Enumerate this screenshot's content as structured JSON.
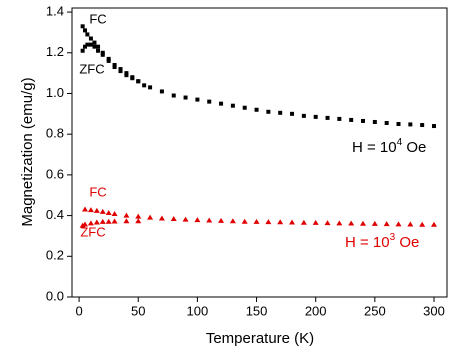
{
  "chart_data": {
    "type": "scatter",
    "xlabel": "Temperature (K)",
    "ylabel": "Magnetization (emu/g)",
    "xlim": [
      -6,
      311
    ],
    "ylim": [
      0,
      1.42
    ],
    "xticks": [
      0,
      50,
      100,
      150,
      200,
      250,
      300
    ],
    "yticks": [
      {
        "value": 0,
        "label": "0.0"
      },
      0.2,
      0.4,
      0.6,
      0.8,
      {
        "value": 1,
        "label": "1.0"
      },
      1.2,
      1.4
    ],
    "series": [
      {
        "name": "FC",
        "color": "#000000",
        "marker": "square",
        "x": [
          3,
          5,
          7,
          10,
          13,
          16,
          20,
          25,
          30,
          35,
          40,
          45,
          50,
          55,
          60,
          70,
          80,
          90,
          100,
          110,
          120,
          130,
          140,
          150,
          160,
          170,
          180,
          190,
          200,
          210,
          220,
          230,
          240,
          250,
          260,
          270,
          280,
          290,
          300
        ],
        "values": [
          1.33,
          1.31,
          1.29,
          1.27,
          1.25,
          1.23,
          1.2,
          1.17,
          1.14,
          1.12,
          1.1,
          1.08,
          1.06,
          1.04,
          1.03,
          1.01,
          0.99,
          0.98,
          0.97,
          0.96,
          0.95,
          0.94,
          0.93,
          0.92,
          0.91,
          0.905,
          0.9,
          0.89,
          0.885,
          0.88,
          0.875,
          0.87,
          0.865,
          0.86,
          0.855,
          0.85,
          0.848,
          0.845,
          0.84
        ]
      },
      {
        "name": "ZFC",
        "color": "#000000",
        "marker": "square",
        "x": [
          3,
          5,
          7,
          10,
          13,
          16,
          20,
          25,
          30,
          35,
          40,
          45,
          50
        ],
        "values": [
          1.21,
          1.23,
          1.24,
          1.24,
          1.23,
          1.21,
          1.19,
          1.16,
          1.13,
          1.11,
          1.09,
          1.075,
          1.06
        ]
      },
      {
        "name": "FC",
        "color": "#e00000",
        "marker": "triangle",
        "x": [
          5,
          10,
          15,
          20,
          25,
          30,
          40,
          50,
          60,
          70,
          80,
          90,
          100,
          110,
          120,
          130,
          140,
          150,
          160,
          170,
          180,
          190,
          200,
          210,
          220,
          230,
          240,
          250,
          260,
          270,
          280,
          290,
          300
        ],
        "values": [
          0.43,
          0.427,
          0.423,
          0.418,
          0.413,
          0.408,
          0.4,
          0.395,
          0.39,
          0.386,
          0.383,
          0.38,
          0.378,
          0.376,
          0.374,
          0.372,
          0.37,
          0.369,
          0.368,
          0.367,
          0.366,
          0.365,
          0.364,
          0.363,
          0.362,
          0.361,
          0.36,
          0.359,
          0.358,
          0.357,
          0.356,
          0.355,
          0.355
        ]
      },
      {
        "name": "ZFC",
        "color": "#e00000",
        "marker": "triangle",
        "x": [
          3,
          5,
          10,
          15,
          20,
          25,
          30,
          40,
          50
        ],
        "values": [
          0.35,
          0.356,
          0.362,
          0.366,
          0.369,
          0.37,
          0.371,
          0.372,
          0.372
        ]
      }
    ],
    "annotations": [
      {
        "text": "H = 10",
        "sup": "4",
        "tail": " Oe",
        "color": "#000000"
      },
      {
        "text": "H = 10",
        "sup": "3",
        "tail": " Oe",
        "color": "#e00000"
      }
    ]
  }
}
